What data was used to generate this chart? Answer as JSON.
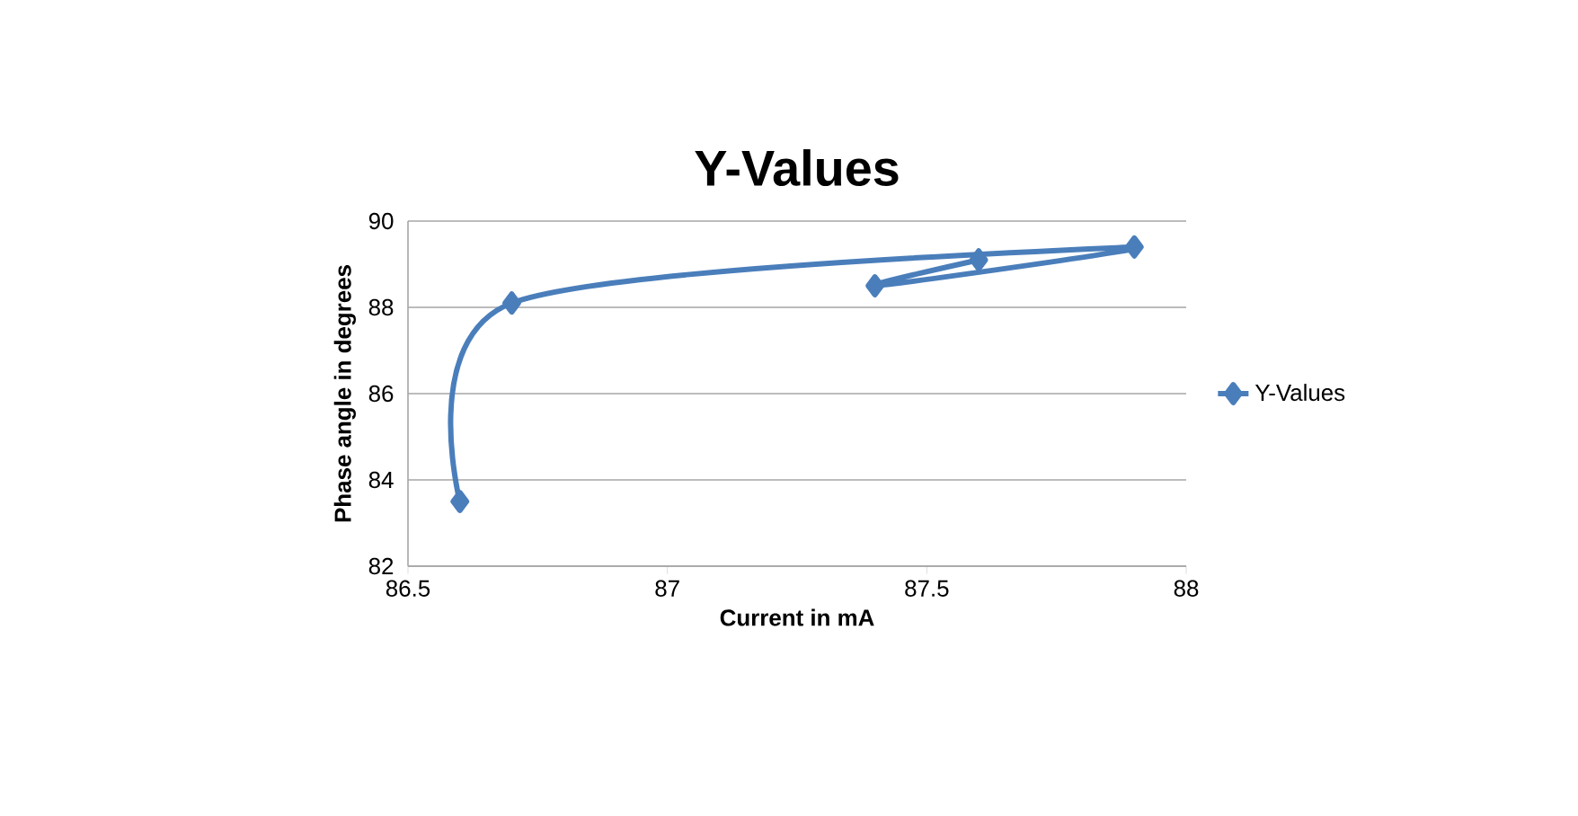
{
  "chart_data": {
    "type": "line",
    "title": "Y-Values",
    "xlabel": "Current in mA",
    "ylabel": "Phase angle in degrees",
    "x": [
      86.6,
      86.7,
      87.9,
      87.4,
      87.6
    ],
    "series": [
      {
        "name": "Y-Values",
        "color": "#4a7ebb",
        "values": [
          83.5,
          88.1,
          89.4,
          88.5,
          89.1
        ]
      }
    ],
    "xlim": [
      86.5,
      88
    ],
    "xticks": [
      86.5,
      87,
      87.5,
      88
    ],
    "ylim": [
      82,
      90
    ],
    "yticks": [
      82,
      84,
      86,
      88,
      90
    ],
    "grid": "y",
    "legend": "right",
    "marker": "diamond",
    "line_style": "solid"
  }
}
